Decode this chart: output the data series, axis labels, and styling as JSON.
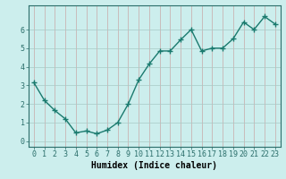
{
  "xlabel": "Humidex (Indice chaleur)",
  "ylabel": "",
  "x": [
    0,
    1,
    2,
    3,
    4,
    5,
    6,
    7,
    8,
    9,
    10,
    11,
    12,
    13,
    14,
    15,
    16,
    17,
    18,
    19,
    20,
    21,
    22,
    23
  ],
  "y": [
    3.15,
    2.2,
    1.65,
    1.2,
    0.45,
    0.55,
    0.4,
    0.6,
    1.0,
    2.0,
    3.3,
    4.15,
    4.85,
    4.85,
    5.45,
    6.0,
    4.85,
    5.0,
    5.0,
    5.5,
    6.4,
    6.0,
    6.7,
    6.3
  ],
  "line_color": "#1a7a6e",
  "marker": "+",
  "marker_size": 4,
  "bg_color": "#cceeed",
  "grid_color_v": "#c9a8a8",
  "grid_color_h": "#a8c9c6",
  "axis_color": "#2a6e6a",
  "ylim": [
    -0.3,
    7.3
  ],
  "xlim": [
    -0.5,
    23.5
  ],
  "yticks": [
    0,
    1,
    2,
    3,
    4,
    5,
    6
  ],
  "xticks": [
    0,
    1,
    2,
    3,
    4,
    5,
    6,
    7,
    8,
    9,
    10,
    11,
    12,
    13,
    14,
    15,
    16,
    17,
    18,
    19,
    20,
    21,
    22,
    23
  ],
  "xlabel_fontsize": 7,
  "tick_fontsize": 6,
  "line_width": 1.0
}
